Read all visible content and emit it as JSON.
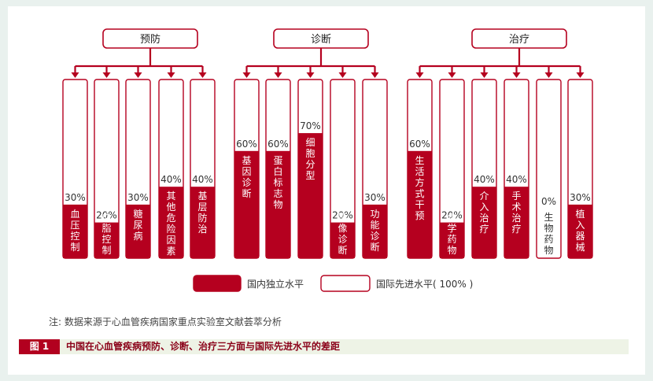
{
  "chart_data": {
    "type": "bar",
    "colors": {
      "domestic": "#b5001f",
      "outline": "#b5001f",
      "text": "#333333"
    },
    "groups": [
      {
        "name": "预防",
        "items": [
          {
            "label": "血压控制",
            "value": 30
          },
          {
            "label": "血脂控制",
            "value": 20
          },
          {
            "label": "糖尿病",
            "value": 30
          },
          {
            "label": "其他危险因素",
            "value": 40
          },
          {
            "label": "基层防治",
            "value": 40
          }
        ]
      },
      {
        "name": "诊断",
        "items": [
          {
            "label": "基因诊断",
            "value": 60
          },
          {
            "label": "蛋白标志物",
            "value": 60
          },
          {
            "label": "细胞分型",
            "value": 70
          },
          {
            "label": "影像诊断",
            "value": 20
          },
          {
            "label": "功能诊断",
            "value": 30
          }
        ]
      },
      {
        "name": "治疗",
        "items": [
          {
            "label": "生活方式干预",
            "value": 60
          },
          {
            "label": "化学药物",
            "value": 20
          },
          {
            "label": "介入治疗",
            "value": 40
          },
          {
            "label": "手术治疗",
            "value": 40
          },
          {
            "label": "生物药物",
            "value": 0
          },
          {
            "label": "植入器械",
            "value": 30
          }
        ]
      }
    ],
    "value_suffix": "%",
    "ylim": [
      0,
      100
    ],
    "legend": [
      {
        "name": "国内独立水平",
        "style": "filled"
      },
      {
        "name": "国际先进水平( 100% )",
        "style": "outline"
      }
    ]
  },
  "note": "注: 数据来源于心血管疾病国家重点实验室文献荟萃分析",
  "figure_tag": "图 1",
  "caption": "中国在心血管疾病预防、诊断、治疗三方面与国际先进水平的差距"
}
